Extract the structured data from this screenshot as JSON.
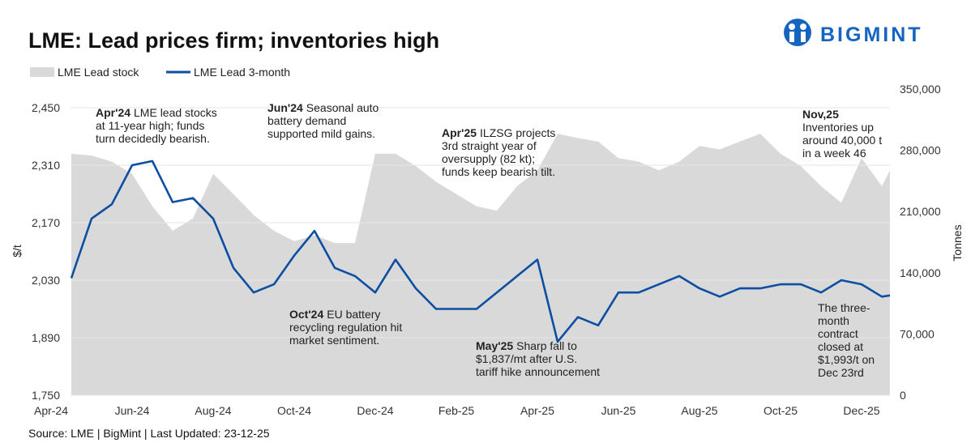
{
  "logo": "BIGMINT",
  "chart_data": {
    "type": "line",
    "title": "LME: Lead prices firm; inventories high",
    "ylabel": "$/t",
    "y2label": "Tonnes",
    "source": "Source: LME | BigMint | Last Updated: 23-12-25",
    "x": [
      0.5,
      1,
      1.5,
      2,
      2.5,
      3,
      3.5,
      4,
      4.5,
      5,
      5.5,
      6,
      6.5,
      7,
      7.5,
      8,
      8.5,
      9,
      9.5,
      10,
      10.5,
      11,
      11.5,
      12,
      12.5,
      13,
      13.5,
      14,
      14.5,
      15,
      15.5,
      16,
      16.5,
      17,
      17.5,
      18,
      18.5,
      19,
      19.5,
      20,
      20.5,
      20.7
    ],
    "xlim": [
      0,
      20.7
    ],
    "xticks": [
      {
        "value": 0,
        "label": "Apr-24"
      },
      {
        "value": 2,
        "label": "Jun-24"
      },
      {
        "value": 4,
        "label": "Aug-24"
      },
      {
        "value": 6,
        "label": "Oct-24"
      },
      {
        "value": 8,
        "label": "Dec-24"
      },
      {
        "value": 10,
        "label": "Feb-25"
      },
      {
        "value": 12,
        "label": "Apr-25"
      },
      {
        "value": 14,
        "label": "Jun-25"
      },
      {
        "value": 16,
        "label": "Aug-25"
      },
      {
        "value": 18,
        "label": "Oct-25"
      },
      {
        "value": 20,
        "label": "Dec-25"
      }
    ],
    "ylim": [
      1750,
      2450
    ],
    "yticks": [
      {
        "value": 1750,
        "label": "1,750"
      },
      {
        "value": 1890,
        "label": "1,890"
      },
      {
        "value": 2030,
        "label": "2,030"
      },
      {
        "value": 2170,
        "label": "2,170"
      },
      {
        "value": 2310,
        "label": "2,310"
      },
      {
        "value": 2450,
        "label": "2,450"
      }
    ],
    "y2lim": [
      0,
      350000
    ],
    "y2ticks": [
      0,
      {
        "value": 70000,
        "label": "70,000"
      },
      {
        "value": 140000,
        "label": "140,000"
      },
      {
        "value": 210000,
        "label": "210,000"
      },
      {
        "value": 280000,
        "label": "280,000"
      },
      {
        "value": 350000,
        "label": "350,000"
      }
    ],
    "grid": true,
    "legend": "top-left",
    "series": [
      {
        "name": "LME Lead stock",
        "color": "#d9d9d9",
        "axis": "y2",
        "kind": "area",
        "values": [
          276000,
          274000,
          267000,
          253000,
          216000,
          188000,
          202000,
          253000,
          230000,
          206000,
          188000,
          176000,
          183000,
          174000,
          174000,
          276000,
          276000,
          262000,
          244000,
          230000,
          216000,
          211000,
          239000,
          257000,
          299000,
          294000,
          290000,
          271000,
          267000,
          257000,
          267000,
          285000,
          281000,
          290000,
          299000,
          276000,
          262000,
          239000,
          220000,
          271000,
          239000,
          257000
        ]
      },
      {
        "name": "LME Lead 3-month",
        "color": "#0b4ea2",
        "kind": "line",
        "values": [
          2035,
          2180,
          2215,
          2310,
          2320,
          2220,
          2230,
          2180,
          2060,
          2000,
          2020,
          2090,
          2150,
          2060,
          2040,
          2000,
          2080,
          2010,
          1960,
          1960,
          1960,
          2000,
          2040,
          2080,
          1880,
          1940,
          1920,
          2000,
          2000,
          2020,
          2040,
          2010,
          1990,
          2010,
          2010,
          2020,
          2020,
          2000,
          2030,
          2020,
          1990,
          1993
        ]
      }
    ],
    "annotations": [
      {
        "lead": "Apr'24",
        "lines": [
          "LME lead stocks",
          "at 11-year high; funds",
          "turn decidedly bearish."
        ]
      },
      {
        "lead": "Jun'24",
        "lines": [
          "Seasonal auto",
          "battery demand",
          "supported mild gains."
        ]
      },
      {
        "lead": "Oct'24",
        "lines": [
          "EU battery",
          "recycling regulation hit",
          "market sentiment."
        ]
      },
      {
        "lead": "Apr'25",
        "lines": [
          "ILZSG projects",
          "3rd straight year of",
          "oversupply (82 kt);",
          "funds keep bearish tilt."
        ]
      },
      {
        "lead": "May'25",
        "lines": [
          "Sharp fall to",
          "$1,837/mt after U.S.",
          "tariff hike announcement"
        ]
      },
      {
        "lead": "Nov,25",
        "lines": [
          "Inventories up",
          "around 40,000 t",
          "in a week 46"
        ]
      },
      {
        "lines": [
          "The three-",
          "month",
          "contract",
          "closed at",
          "$1,993/t on",
          "Dec 23rd"
        ]
      }
    ]
  }
}
